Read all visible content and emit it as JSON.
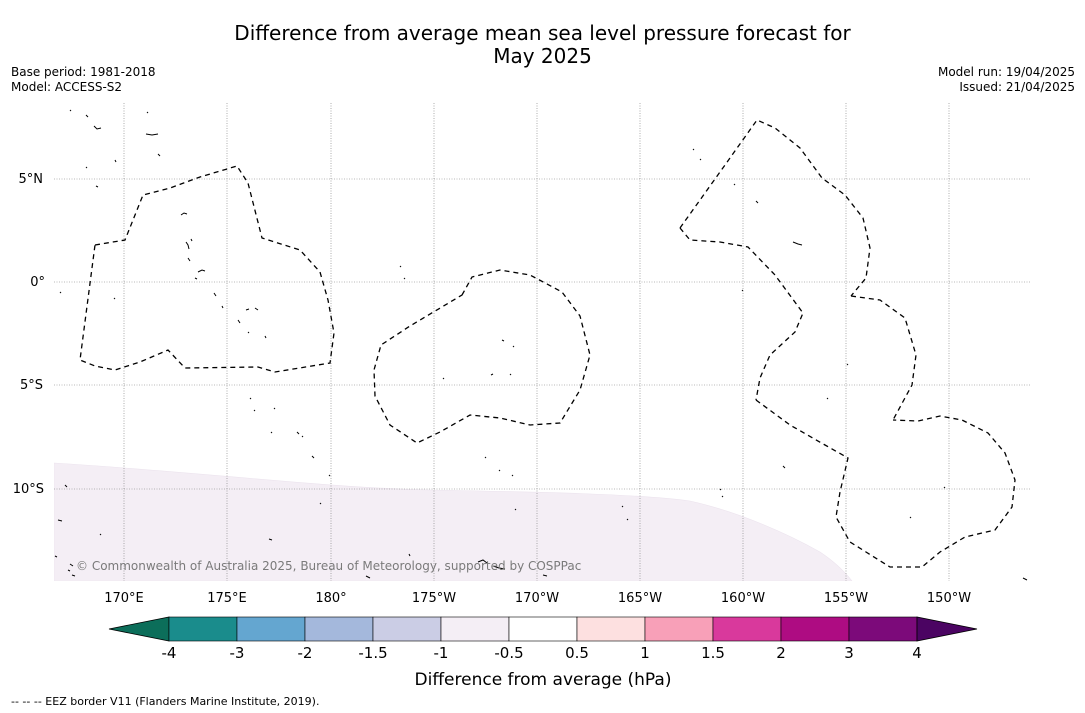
{
  "title": {
    "line1": "Difference from average mean sea level pressure forecast for",
    "line2": "May 2025"
  },
  "meta": {
    "base_period": "Base period: 1981-2018",
    "model": "Model: ACCESS-S2",
    "model_run": "Model run: 19/04/2025",
    "issued": "Issued: 21/04/2025"
  },
  "map": {
    "latitude_labels": [
      "5°N",
      "0°",
      "5°S",
      "10°S"
    ],
    "longitude_labels": [
      "170°E",
      "175°E",
      "180°",
      "175°W",
      "170°W",
      "165°W",
      "160°W",
      "155°W",
      "150°W"
    ],
    "copyright": "© Commonwealth of Australia 2025, Bureau of Meteorology, supported by COSPPac",
    "anomaly_fill_color": "#f4eef5",
    "eez_line_style": "dashed"
  },
  "colorbar": {
    "title": "Difference from average (hPa)",
    "ticks": [
      "-4",
      "-3",
      "-2",
      "-1.5",
      "-1",
      "-0.5",
      "0.5",
      "1",
      "1.5",
      "2",
      "3",
      "4"
    ],
    "colors": [
      "#1a8c8c",
      "#64a6d0",
      "#a4b8dc",
      "#cbcde5",
      "#f4eef5",
      "#ffffff",
      "#fde0e0",
      "#f8a0b8",
      "#d9399c",
      "#ae0c82",
      "#7c0a7a"
    ],
    "under_color": "#0c6e5a",
    "over_color": "#4b0462"
  },
  "legend": {
    "eez_text": "--  --  -- EEZ border V11 (Flanders Marine Institute, 2019)."
  }
}
